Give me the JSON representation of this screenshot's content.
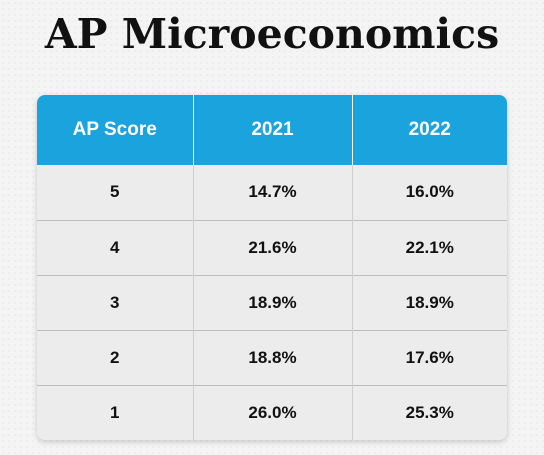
{
  "title": "AP Microeconomics",
  "table": {
    "headers": [
      "AP Score",
      "2021",
      "2022"
    ],
    "rows": [
      [
        "5",
        "14.7%",
        "16.0%"
      ],
      [
        "4",
        "21.6%",
        "22.1%"
      ],
      [
        "3",
        "18.9%",
        "18.9%"
      ],
      [
        "2",
        "18.8%",
        "17.6%"
      ],
      [
        "1",
        "26.0%",
        "25.3%"
      ]
    ]
  },
  "colors": {
    "header_background": "#1aa3dd",
    "header_text": "#ffffff",
    "body_background": "#ececec",
    "body_text": "#111111"
  }
}
